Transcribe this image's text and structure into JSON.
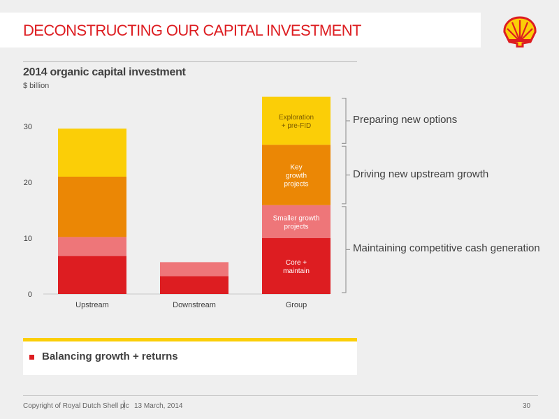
{
  "slide": {
    "title": "DECONSTRUCTING OUR CAPITAL INVESTMENT",
    "logo": "shell-pecten-logo"
  },
  "takeaway": {
    "text": "Balancing growth + returns"
  },
  "footer": {
    "copyright": "Copyright of Royal Dutch Shell plc",
    "date": "13 March, 2014",
    "page_number": "30"
  },
  "colors": {
    "brand_red": "#dd1d21",
    "brand_yellow": "#fbce07",
    "orange": "#eb8705",
    "pink": "#ee7679"
  },
  "chart_data": {
    "type": "bar",
    "stacked": true,
    "title": "2014 organic capital investment",
    "unit": "$ billion",
    "xlabel": "",
    "ylabel": "",
    "categories": [
      "Upstream",
      "Downstream",
      "Group"
    ],
    "ylim": [
      0,
      35
    ],
    "yticks": [
      0,
      10,
      20,
      30
    ],
    "grid": false,
    "legend": "none",
    "series": [
      {
        "name": "Core + maintain",
        "color": "#dd1d21",
        "values": [
          6.8,
          3.2,
          10
        ]
      },
      {
        "name": "Smaller growth projects",
        "color": "#ee7679",
        "values": [
          3.4,
          2.5,
          5.9
        ]
      },
      {
        "name": "Key growth projects",
        "color": "#eb8705",
        "values": [
          10.8,
          0,
          10.8
        ]
      },
      {
        "name": "Exploration + pre-FID",
        "color": "#fbce07",
        "values": [
          8.6,
          0,
          8.6
        ]
      }
    ],
    "segment_labels": {
      "category": "Group",
      "items": [
        {
          "series": 0,
          "lines": [
            "Core +",
            "maintain"
          ]
        },
        {
          "series": 1,
          "lines": [
            "Smaller growth",
            "projects"
          ]
        },
        {
          "series": 2,
          "lines": [
            "Key",
            "growth",
            "projects"
          ]
        },
        {
          "series": 3,
          "lines": [
            "Exploration",
            "+ pre-FID"
          ]
        }
      ]
    },
    "brackets": [
      {
        "label": "Preparing new options",
        "from": 26.7,
        "to": 35.3
      },
      {
        "label": "Driving new upstream growth",
        "from": 15.9,
        "to": 26.7
      },
      {
        "label": "Maintaining competitive cash generation",
        "from": 0,
        "to": 15.9
      }
    ]
  }
}
